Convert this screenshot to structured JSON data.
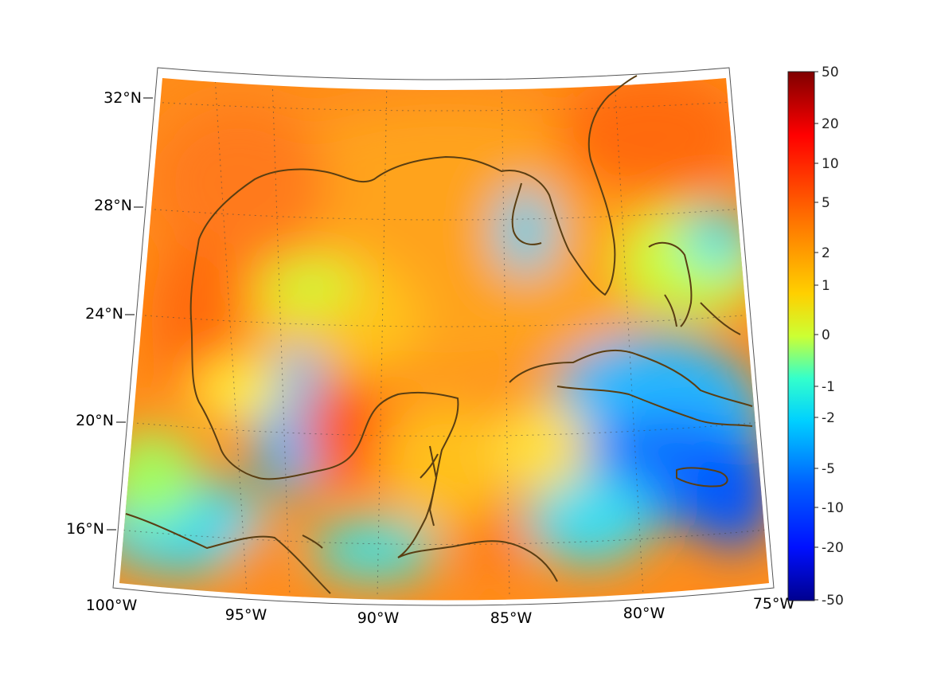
{
  "map": {
    "projection": "conic",
    "extent": {
      "lon_min": -100,
      "lon_max": -75,
      "lat_min": 14,
      "lat_max": 33
    },
    "lat_labels": [
      "32°N",
      "28°N",
      "24°N",
      "20°N",
      "16°N"
    ],
    "lon_labels": [
      "100°W",
      "95°W",
      "90°W",
      "85°W",
      "80°W",
      "75°W"
    ],
    "graticule": "dotted",
    "coastline_color": "#5a3e12",
    "field_description_colors": {
      "gulf_interior": "#ff9a1a",
      "caribbean_low": "#1f8cff",
      "pacific_low": "#3fd8e8"
    }
  },
  "colorbar": {
    "tick_labels": [
      "50",
      "20",
      "10",
      "5",
      "2",
      "1",
      "0",
      "-1",
      "-2",
      "-5",
      "-10",
      "-20",
      "-50"
    ],
    "colormap": "jet",
    "colors": [
      "#7f0000",
      "#ff0000",
      "#ff7f00",
      "#ffff00",
      "#00ffff",
      "#0000ff",
      "#00008f"
    ]
  }
}
